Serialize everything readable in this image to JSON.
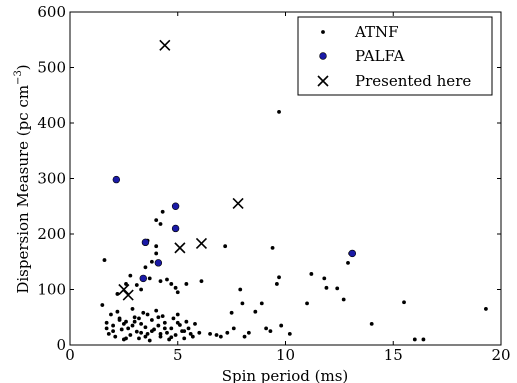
{
  "chart_data": {
    "type": "scatter",
    "xlabel": "Spin period (ms)",
    "ylabel_main": "Dispersion Measure (pc cm",
    "ylabel_sup": "−3",
    "ylabel_close": ")",
    "xlim": [
      0,
      20
    ],
    "ylim": [
      0,
      600
    ],
    "xticks": [
      0,
      5,
      10,
      15,
      20
    ],
    "yticks": [
      0,
      100,
      200,
      300,
      400,
      500,
      600
    ],
    "grid": false,
    "legend_position": "top-right",
    "series": [
      {
        "name": "ATNF",
        "marker": "small-dot",
        "color": "#000000",
        "points": [
          [
            1.6,
            153
          ],
          [
            1.5,
            72
          ],
          [
            1.7,
            40
          ],
          [
            1.8,
            20
          ],
          [
            1.9,
            55
          ],
          [
            2.0,
            35
          ],
          [
            2.1,
            15
          ],
          [
            2.2,
            60
          ],
          [
            2.3,
            48
          ],
          [
            2.4,
            28
          ],
          [
            2.5,
            10
          ],
          [
            2.6,
            42
          ],
          [
            2.7,
            30
          ],
          [
            2.8,
            18
          ],
          [
            2.9,
            65
          ],
          [
            3.0,
            50
          ],
          [
            3.1,
            24
          ],
          [
            3.2,
            12
          ],
          [
            3.3,
            38
          ],
          [
            3.4,
            58
          ],
          [
            3.5,
            32
          ],
          [
            3.6,
            20
          ],
          [
            3.7,
            8
          ],
          [
            3.8,
            45
          ],
          [
            3.9,
            28
          ],
          [
            4.0,
            62
          ],
          [
            4.1,
            35
          ],
          [
            4.2,
            15
          ],
          [
            4.3,
            52
          ],
          [
            4.4,
            40
          ],
          [
            4.5,
            22
          ],
          [
            4.6,
            10
          ],
          [
            4.7,
            30
          ],
          [
            4.8,
            48
          ],
          [
            4.9,
            18
          ],
          [
            5.0,
            55
          ],
          [
            5.1,
            36
          ],
          [
            5.2,
            25
          ],
          [
            5.3,
            12
          ],
          [
            5.4,
            42
          ],
          [
            5.5,
            30
          ],
          [
            5.6,
            20
          ],
          [
            5.7,
            15
          ],
          [
            5.8,
            38
          ],
          [
            6.0,
            22
          ],
          [
            1.7,
            30
          ],
          [
            2.0,
            25
          ],
          [
            2.3,
            45
          ],
          [
            2.6,
            12
          ],
          [
            2.9,
            35
          ],
          [
            3.2,
            48
          ],
          [
            3.5,
            15
          ],
          [
            3.8,
            25
          ],
          [
            4.1,
            50
          ],
          [
            4.4,
            30
          ],
          [
            4.7,
            14
          ],
          [
            5.0,
            40
          ],
          [
            5.3,
            25
          ],
          [
            3.0,
            42
          ],
          [
            3.6,
            55
          ],
          [
            4.2,
            20
          ],
          [
            2.5,
            38
          ],
          [
            3.3,
            22
          ],
          [
            2.2,
            92
          ],
          [
            2.6,
            110
          ],
          [
            2.8,
            125
          ],
          [
            3.1,
            108
          ],
          [
            3.3,
            100
          ],
          [
            3.5,
            140
          ],
          [
            3.7,
            120
          ],
          [
            3.8,
            150
          ],
          [
            4.0,
            165
          ],
          [
            4.2,
            115
          ],
          [
            4.5,
            118
          ],
          [
            4.7,
            110
          ],
          [
            4.9,
            103
          ],
          [
            5.0,
            95
          ],
          [
            5.4,
            110
          ],
          [
            6.1,
            115
          ],
          [
            3.6,
            188
          ],
          [
            4.0,
            225
          ],
          [
            4.2,
            218
          ],
          [
            4.3,
            240
          ],
          [
            4.0,
            178
          ],
          [
            7.2,
            178
          ],
          [
            7.5,
            58
          ],
          [
            7.6,
            30
          ],
          [
            7.9,
            100
          ],
          [
            8.0,
            75
          ],
          [
            8.3,
            22
          ],
          [
            8.6,
            60
          ],
          [
            8.9,
            75
          ],
          [
            9.1,
            30
          ],
          [
            9.3,
            25
          ],
          [
            9.4,
            175
          ],
          [
            9.6,
            110
          ],
          [
            9.7,
            122
          ],
          [
            9.8,
            35
          ],
          [
            10.2,
            20
          ],
          [
            11.0,
            75
          ],
          [
            11.2,
            128
          ],
          [
            11.8,
            120
          ],
          [
            11.9,
            103
          ],
          [
            12.4,
            102
          ],
          [
            12.7,
            82
          ],
          [
            12.9,
            148
          ],
          [
            13.0,
            165
          ],
          [
            14.0,
            38
          ],
          [
            15.5,
            77
          ],
          [
            16.0,
            10
          ],
          [
            16.4,
            10
          ],
          [
            19.3,
            65
          ],
          [
            9.7,
            420
          ],
          [
            6.5,
            20
          ],
          [
            6.8,
            18
          ],
          [
            7.0,
            15
          ],
          [
            7.3,
            22
          ],
          [
            8.1,
            15
          ]
        ]
      },
      {
        "name": "PALFA",
        "marker": "circle",
        "color": "#1a1aa6",
        "points": [
          [
            2.15,
            298
          ],
          [
            3.5,
            185
          ],
          [
            3.4,
            120
          ],
          [
            4.1,
            148
          ],
          [
            4.9,
            210
          ],
          [
            4.9,
            250
          ],
          [
            13.1,
            165
          ]
        ]
      },
      {
        "name": "Presented here",
        "marker": "x",
        "color": "#000000",
        "points": [
          [
            4.4,
            540
          ],
          [
            7.8,
            255
          ],
          [
            6.1,
            183
          ],
          [
            5.1,
            175
          ],
          [
            2.5,
            100
          ],
          [
            2.7,
            90
          ]
        ]
      }
    ]
  }
}
